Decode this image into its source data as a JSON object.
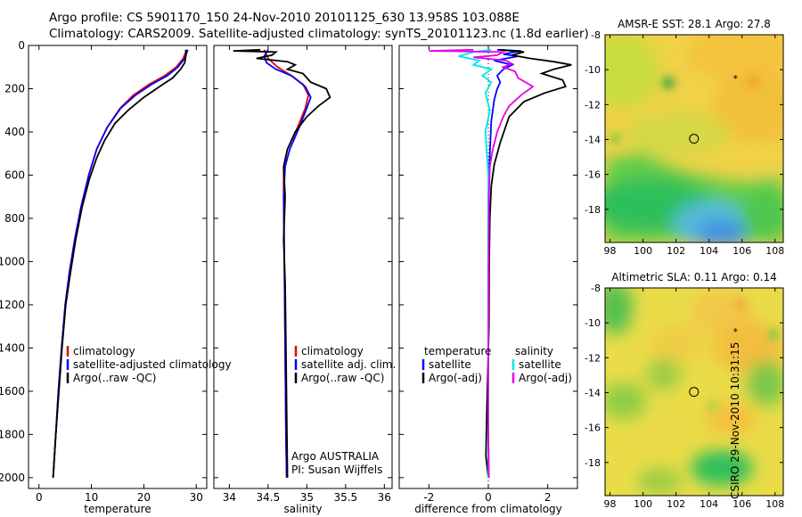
{
  "header": {
    "line1": "Argo profile: CS 5901170_150 24-Nov-2010 20101125_630 13.958S 103.088E",
    "line2": "Climatology: CARS2009. Satellite-adjusted climatology: synTS_20101123.nc (1.8d earlier)"
  },
  "side_label": "CSIRO 29-Nov-2010 10:31:15",
  "colors": {
    "clim": "#e00000",
    "sat": "#0000ff",
    "argo": "#000000",
    "sal_sat": "#00e6e6",
    "sal_argo": "#e600e6"
  },
  "chart_data": [
    {
      "type": "line",
      "id": "temperature",
      "xlabel": "temperature",
      "xlim": [
        -2,
        32
      ],
      "ylim": [
        2050,
        0
      ],
      "xticks": [
        0,
        10,
        20,
        30
      ],
      "yticks": [
        0,
        200,
        400,
        600,
        800,
        1000,
        1200,
        1400,
        1600,
        1800,
        2000
      ],
      "series": [
        {
          "name": "climatology",
          "color": "#e00000",
          "points": [
            [
              28.2,
              20
            ],
            [
              27.5,
              60
            ],
            [
              26.2,
              100
            ],
            [
              24,
              140
            ],
            [
              21,
              180
            ],
            [
              18,
              230
            ],
            [
              15.5,
              290
            ],
            [
              13,
              380
            ],
            [
              11,
              480
            ],
            [
              9.5,
              600
            ],
            [
              8,
              750
            ],
            [
              6.8,
              900
            ],
            [
              5.8,
              1050
            ],
            [
              5,
              1200
            ],
            [
              4.3,
              1400
            ],
            [
              3.7,
              1600
            ],
            [
              3.2,
              1800
            ],
            [
              2.7,
              2000
            ]
          ]
        },
        {
          "name": "satellite-adjusted climatology",
          "color": "#0000ff",
          "points": [
            [
              28.4,
              20
            ],
            [
              27.8,
              60
            ],
            [
              26.5,
              100
            ],
            [
              24.5,
              140
            ],
            [
              21.5,
              180
            ],
            [
              18.4,
              230
            ],
            [
              15.6,
              290
            ],
            [
              13,
              380
            ],
            [
              11,
              480
            ],
            [
              9.5,
              600
            ],
            [
              8,
              750
            ],
            [
              6.8,
              900
            ],
            [
              5.8,
              1050
            ],
            [
              5,
              1200
            ],
            [
              4.3,
              1400
            ],
            [
              3.7,
              1600
            ],
            [
              3.2,
              1800
            ],
            [
              2.7,
              2000
            ]
          ]
        },
        {
          "name": "Argo(..raw -QC)",
          "color": "#000000",
          "points": [
            [
              28,
              20
            ],
            [
              28,
              50
            ],
            [
              27.8,
              80
            ],
            [
              27,
              110
            ],
            [
              25.5,
              150
            ],
            [
              23,
              190
            ],
            [
              20,
              240
            ],
            [
              17,
              300
            ],
            [
              14.5,
              360
            ],
            [
              12.5,
              440
            ],
            [
              11,
              520
            ],
            [
              9.6,
              620
            ],
            [
              8.2,
              750
            ],
            [
              7,
              900
            ],
            [
              6,
              1050
            ],
            [
              5.1,
              1200
            ],
            [
              4.4,
              1400
            ],
            [
              3.8,
              1600
            ],
            [
              3.2,
              1800
            ],
            [
              2.7,
              2000
            ]
          ]
        }
      ],
      "legend": [
        {
          "label": "climatology",
          "color": "#e00000"
        },
        {
          "label": "satellite-adjusted climatology",
          "color": "#0000ff"
        },
        {
          "label": "Argo(..raw -QC)",
          "color": "#000000"
        }
      ]
    },
    {
      "type": "line",
      "id": "salinity",
      "xlabel": "salinity",
      "xlim": [
        33.8,
        36.1
      ],
      "xticks": [
        34,
        34.5,
        35,
        35.5,
        36
      ],
      "xtick_labels": [
        "34",
        "34.5",
        "35",
        "35.5",
        "36"
      ],
      "series": [
        {
          "name": "climatology",
          "color": "#e00000",
          "points": [
            [
              34.45,
              20
            ],
            [
              34.5,
              60
            ],
            [
              34.62,
              100
            ],
            [
              34.8,
              140
            ],
            [
              34.95,
              180
            ],
            [
              35.02,
              230
            ],
            [
              34.98,
              290
            ],
            [
              34.88,
              380
            ],
            [
              34.75,
              480
            ],
            [
              34.7,
              560
            ],
            [
              34.7,
              700
            ],
            [
              34.71,
              1000
            ],
            [
              34.72,
              1400
            ],
            [
              34.73,
              1800
            ],
            [
              34.74,
              2000
            ]
          ]
        },
        {
          "name": "satellite adj. clim.",
          "color": "#0000ff",
          "points": [
            [
              34.5,
              20
            ],
            [
              34.45,
              50
            ],
            [
              34.48,
              80
            ],
            [
              34.6,
              110
            ],
            [
              34.8,
              140
            ],
            [
              34.98,
              190
            ],
            [
              35.05,
              240
            ],
            [
              35.0,
              290
            ],
            [
              34.9,
              380
            ],
            [
              34.78,
              480
            ],
            [
              34.72,
              560
            ],
            [
              34.7,
              700
            ],
            [
              34.71,
              1000
            ],
            [
              34.72,
              1400
            ],
            [
              34.73,
              1800
            ],
            [
              34.74,
              2000
            ]
          ]
        },
        {
          "name": "Argo(..raw -QC)",
          "color": "#000000",
          "points": [
            [
              34.4,
              20
            ],
            [
              34.05,
              25
            ],
            [
              34.6,
              30
            ],
            [
              34.55,
              45
            ],
            [
              34.35,
              60
            ],
            [
              34.75,
              75
            ],
            [
              34.85,
              90
            ],
            [
              34.75,
              110
            ],
            [
              34.95,
              130
            ],
            [
              35.05,
              170
            ],
            [
              35.25,
              200
            ],
            [
              35.3,
              240
            ],
            [
              35.15,
              280
            ],
            [
              35.0,
              330
            ],
            [
              34.85,
              400
            ],
            [
              34.75,
              480
            ],
            [
              34.7,
              560
            ],
            [
              34.72,
              700
            ],
            [
              34.7,
              900
            ],
            [
              34.72,
              1100
            ],
            [
              34.73,
              1400
            ],
            [
              34.74,
              1700
            ],
            [
              34.75,
              2000
            ]
          ]
        }
      ],
      "legend": [
        {
          "label": "climatology",
          "color": "#e00000"
        },
        {
          "label": "satellite adj. clim.",
          "color": "#0000ff"
        },
        {
          "label": "Argo(..raw -QC)",
          "color": "#000000"
        }
      ],
      "note": [
        "Argo AUSTRALIA",
        "PI: Susan Wijffels"
      ]
    },
    {
      "type": "line",
      "id": "difference",
      "xlabel": "difference from climatology",
      "xlim": [
        -3,
        3
      ],
      "xticks": [
        -2,
        0,
        2
      ],
      "xtick_labels": [
        "-2",
        "0",
        "2"
      ],
      "zero_line": true,
      "series": [
        {
          "name": "temperature satellite",
          "color": "#0000ff",
          "points": [
            [
              0.3,
              20
            ],
            [
              1.1,
              25
            ],
            [
              0.5,
              40
            ],
            [
              1.0,
              50
            ],
            [
              0.2,
              70
            ],
            [
              0.8,
              90
            ],
            [
              0.5,
              110
            ],
            [
              0.3,
              140
            ],
            [
              0.4,
              170
            ],
            [
              0.3,
              200
            ],
            [
              0.2,
              250
            ],
            [
              0.1,
              350
            ],
            [
              0.05,
              500
            ],
            [
              0,
              700
            ],
            [
              0,
              1000
            ],
            [
              0,
              1400
            ],
            [
              0,
              1800
            ],
            [
              0,
              2000
            ]
          ]
        },
        {
          "name": "temperature Argo(-adj)",
          "color": "#000000",
          "points": [
            [
              0.4,
              20
            ],
            [
              1.2,
              30
            ],
            [
              0.8,
              45
            ],
            [
              1.4,
              60
            ],
            [
              2.2,
              75
            ],
            [
              2.8,
              90
            ],
            [
              2.2,
              110
            ],
            [
              1.8,
              130
            ],
            [
              2.5,
              160
            ],
            [
              2.6,
              190
            ],
            [
              1.9,
              220
            ],
            [
              1.2,
              260
            ],
            [
              0.7,
              330
            ],
            [
              0.4,
              450
            ],
            [
              0.2,
              550
            ],
            [
              0.1,
              650
            ],
            [
              0.05,
              800
            ],
            [
              0.03,
              1000
            ],
            [
              0.02,
              1300
            ],
            [
              -0.05,
              1700
            ],
            [
              -0.08,
              1900
            ],
            [
              0,
              2000
            ]
          ]
        },
        {
          "name": "salinity satellite",
          "color": "#00e6e6",
          "points": [
            [
              0.1,
              20
            ],
            [
              -0.5,
              30
            ],
            [
              -1.0,
              50
            ],
            [
              -0.3,
              70
            ],
            [
              -0.5,
              90
            ],
            [
              0.1,
              110
            ],
            [
              -0.2,
              140
            ],
            [
              0.1,
              170
            ],
            [
              -0.1,
              220
            ],
            [
              0.05,
              300
            ],
            [
              -0.1,
              400
            ],
            [
              -0.05,
              500
            ],
            [
              0,
              600
            ],
            [
              0,
              800
            ],
            [
              0,
              1000
            ],
            [
              0,
              1400
            ],
            [
              0,
              1800
            ],
            [
              0,
              2000
            ]
          ]
        },
        {
          "name": "salinity Argo(-adj)",
          "color": "#e600e6",
          "points": [
            [
              -0.5,
              20
            ],
            [
              -2.0,
              25
            ],
            [
              0.5,
              30
            ],
            [
              0.3,
              45
            ],
            [
              -0.5,
              55
            ],
            [
              0.6,
              70
            ],
            [
              0.8,
              85
            ],
            [
              0.5,
              100
            ],
            [
              0.9,
              120
            ],
            [
              1.0,
              150
            ],
            [
              1.5,
              190
            ],
            [
              1.1,
              230
            ],
            [
              0.7,
              280
            ],
            [
              0.5,
              330
            ],
            [
              0.3,
              400
            ],
            [
              0.15,
              480
            ],
            [
              0.05,
              560
            ],
            [
              0.02,
              700
            ],
            [
              0.01,
              1000
            ],
            [
              0,
              1400
            ],
            [
              0,
              1800
            ],
            [
              0.02,
              2000
            ]
          ]
        }
      ],
      "legend_left": {
        "title": "temperature",
        "items": [
          {
            "label": "satellite",
            "color": "#0000ff"
          },
          {
            "label": "Argo(-adj)",
            "color": "#000000"
          }
        ]
      },
      "legend_right": {
        "title": "salinity",
        "items": [
          {
            "label": "satellite",
            "color": "#00e6e6"
          },
          {
            "label": "Argo(-adj)",
            "color": "#e600e6"
          }
        ]
      }
    },
    {
      "type": "heatmap",
      "id": "sst-map",
      "title": "AMSR-E SST: 28.1 Argo: 27.8",
      "xlim": [
        97.7,
        108.5
      ],
      "ylim": [
        -19.9,
        -8
      ],
      "xticks": [
        98,
        100,
        102,
        104,
        106,
        108
      ],
      "yticks": [
        -8,
        -10,
        -12,
        -14,
        -16,
        -18
      ],
      "ytick_labels": [
        "-8",
        "-10",
        "-12",
        "-14",
        "-16",
        "-18"
      ],
      "argo_position": [
        103.088,
        -13.958
      ],
      "marker_position": [
        105.6,
        -10.5
      ]
    },
    {
      "type": "heatmap",
      "id": "sla-map",
      "title": "Altimetric SLA: 0.11 Argo: 0.14",
      "xlim": [
        97.7,
        108.5
      ],
      "ylim": [
        -19.9,
        -8
      ],
      "xticks": [
        98,
        100,
        102,
        104,
        106,
        108
      ],
      "yticks": [
        -8,
        -10,
        -12,
        -14,
        -16,
        -18
      ],
      "ytick_labels": [
        "-8",
        "-10",
        "-12",
        "-14",
        "-16",
        "-18"
      ],
      "argo_position": [
        103.088,
        -13.958
      ],
      "marker_position": [
        105.6,
        -10.5
      ]
    }
  ]
}
